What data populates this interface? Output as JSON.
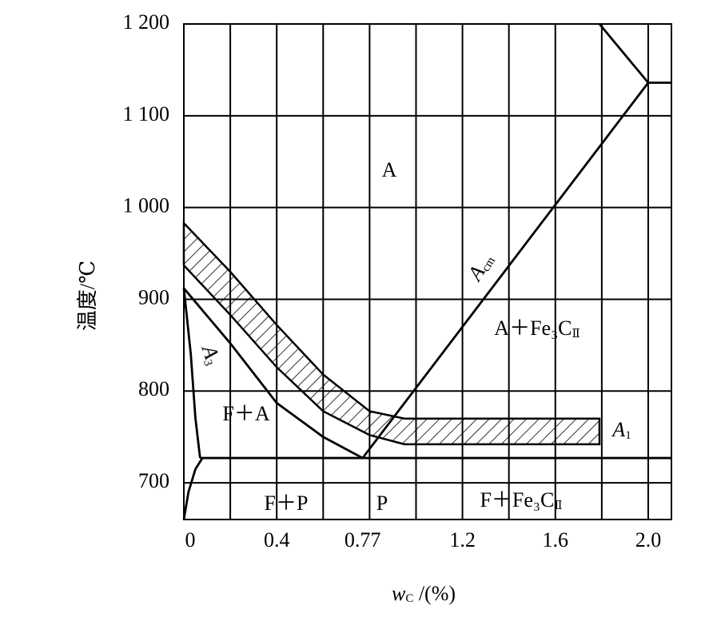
{
  "chart_data": {
    "type": "line",
    "xlabel": {
      "text": "w",
      "sub": "C",
      "post": " /(%)"
    },
    "ylabel": "温度/℃",
    "xlim": [
      0,
      2.1
    ],
    "ylim": [
      660,
      1200
    ],
    "xticks": [
      0,
      0.4,
      0.77,
      1.2,
      1.6,
      {
        "value": 2,
        "label": "2.0"
      }
    ],
    "xgrid": [
      0.2,
      0.4,
      0.6,
      0.8,
      1.0,
      1.2,
      1.4,
      1.6,
      1.8,
      2.0
    ],
    "yticks": [
      700,
      800,
      900,
      {
        "value": 1000,
        "label": "1 000"
      },
      {
        "value": 1100,
        "label": "1 100"
      },
      {
        "value": 1200,
        "label": "1 200"
      }
    ],
    "grid": true,
    "series": [
      {
        "color": "#000000",
        "x": [
          0,
          0.2,
          0.4,
          0.6,
          0.77
        ],
        "values": [
          912,
          852,
          787,
          750,
          727
        ]
      },
      {
        "color": "#000000",
        "x": [
          0,
          0.03,
          0.05,
          0.07
        ],
        "values": [
          912,
          840,
          770,
          727
        ]
      },
      {
        "color": "#000000",
        "x": [
          0,
          0.02,
          0.05,
          0.08
        ],
        "values": [
          660,
          690,
          715,
          727
        ]
      },
      {
        "color": "#000000",
        "x": [
          0.07,
          2.1
        ],
        "values": [
          727,
          727
        ]
      },
      {
        "color": "#000000",
        "x": [
          0.77,
          2.0
        ],
        "values": [
          727,
          1136
        ]
      },
      {
        "color": "#000000",
        "x": [
          2.0,
          2.1
        ],
        "values": [
          1136,
          1136
        ]
      },
      {
        "color": "#000000",
        "x": [
          1.79,
          2.0
        ],
        "values": [
          1200,
          1136
        ]
      }
    ],
    "band": {
      "x": [
        0,
        0.2,
        0.4,
        0.6,
        0.8,
        0.95,
        1.79
      ],
      "upper": [
        983,
        930,
        872,
        818,
        778,
        770,
        770
      ],
      "lower": [
        937,
        883,
        826,
        778,
        752,
        742,
        742
      ]
    },
    "annotations": [
      {
        "text": "A"
      },
      {
        "text": "F＋A"
      },
      {
        "text": "F＋P"
      },
      {
        "text": "P"
      },
      {
        "text": "F＋Fe₃C",
        "sub": "Ⅱ"
      },
      {
        "text": "A＋Fe₃C",
        "sub": "Ⅱ"
      },
      {
        "text": "A",
        "sub": "1"
      },
      {
        "text": "A",
        "sub": "3"
      },
      {
        "text": "A",
        "sub": "cm"
      }
    ]
  }
}
